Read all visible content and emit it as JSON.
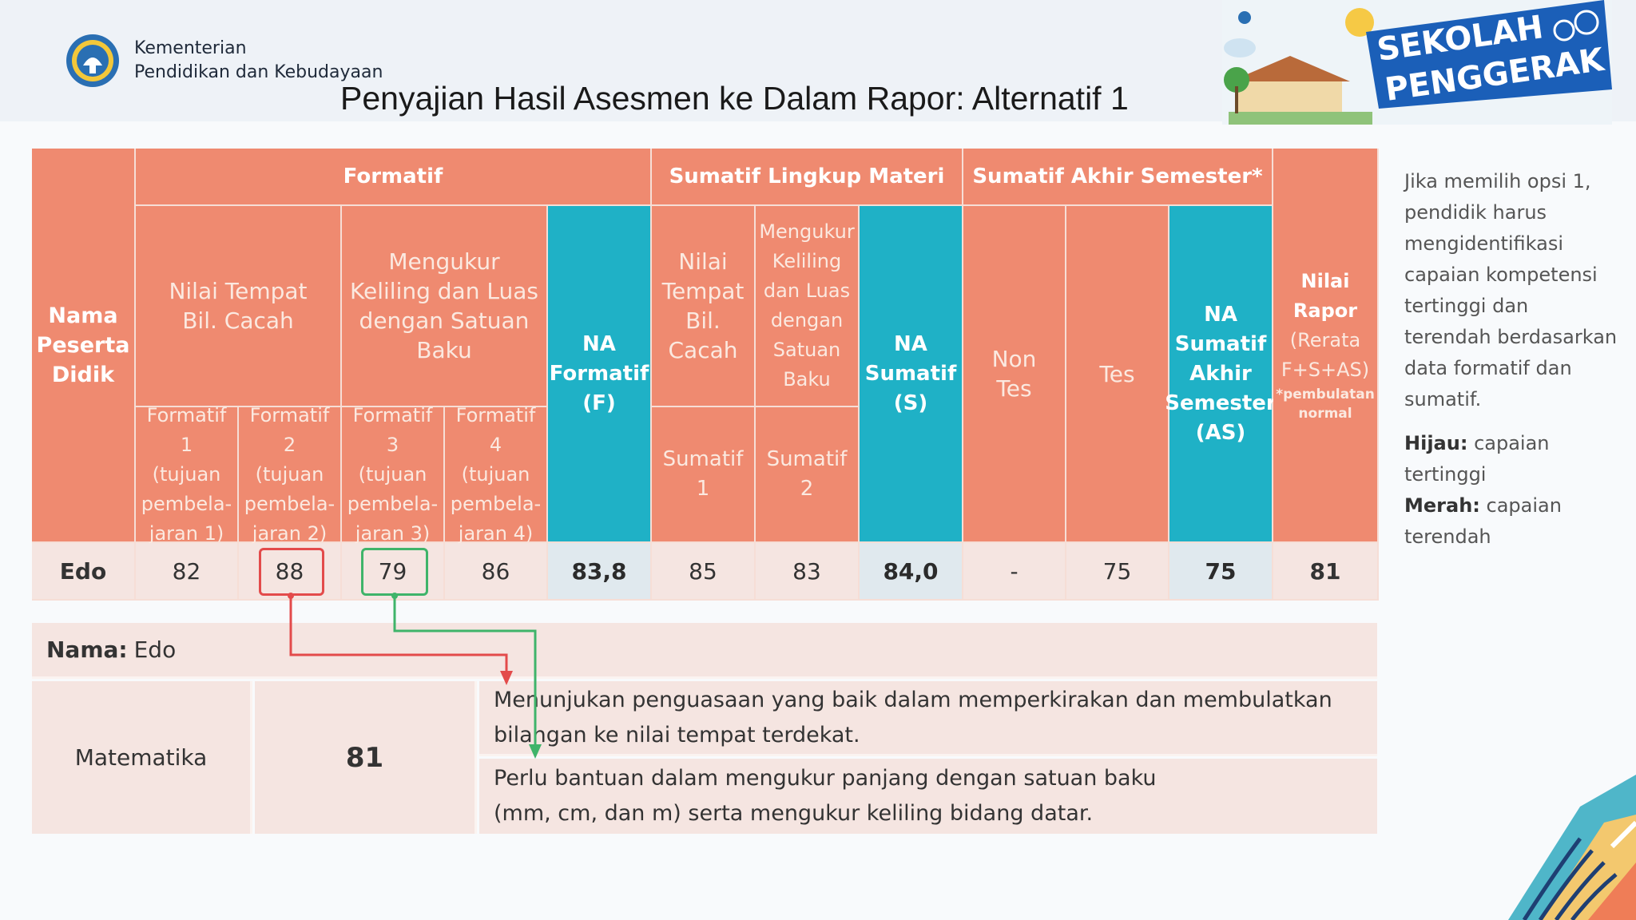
{
  "header": {
    "ministry_line1": "Kementerian",
    "ministry_line2": "Pendidikan dan Kebudayaan",
    "title": "Penyajian Hasil Asesmen ke Dalam Rapor: Alternatif 1",
    "badge_line1": "SEKOLAH",
    "badge_line2": "PENGGERAK"
  },
  "table": {
    "col_nama": [
      "Nama",
      "Peserta",
      "Didik"
    ],
    "group_formatif": "Formatif",
    "group_sumatif_lingkup": "Sumatif Lingkup Materi",
    "group_sumatif_akhir": "Sumatif Akhir Semester*",
    "formatif_topic1": [
      "Nilai Tempat",
      "Bil. Cacah"
    ],
    "formatif_topic2": [
      "Mengukur",
      "Keliling dan Luas",
      "dengan Satuan",
      "Baku"
    ],
    "formatif_cols": [
      [
        "Formatif 1",
        "(tujuan",
        "pembela-",
        "jaran 1)"
      ],
      [
        "Formatif 2",
        "(tujuan",
        "pembela-",
        "jaran 2)"
      ],
      [
        "Formatif 3",
        "(tujuan",
        "pembela-",
        "jaran 3)"
      ],
      [
        "Formatif 4",
        "(tujuan",
        "pembela-",
        "jaran 4)"
      ]
    ],
    "na_formatif": [
      "NA",
      "Formatif",
      "(F)"
    ],
    "sumatif_topic1": [
      "Nilai",
      "Tempat",
      "Bil.",
      "Cacah"
    ],
    "sumatif_topic2": [
      "Mengukur",
      "Keliling",
      "dan Luas",
      "dengan",
      "Satuan",
      "Baku"
    ],
    "sumatif_1": "Sumatif 1",
    "sumatif_2": "Sumatif 2",
    "na_sumatif": [
      "NA",
      "Sumatif",
      "(S)"
    ],
    "non_tes": [
      "Non",
      "Tes"
    ],
    "tes": "Tes",
    "na_sas": [
      "NA",
      "Sumatif",
      "Akhir",
      "Semester",
      "(AS)"
    ],
    "nilai_rapor": [
      "Nilai",
      "Rapor",
      "(Rerata",
      "F+S+AS)"
    ],
    "nilai_rapor_note": [
      "*pembulatan",
      "normal"
    ],
    "row": {
      "name": "Edo",
      "f1": "82",
      "f2": "88",
      "f3": "79",
      "f4": "86",
      "na_f": "83,8",
      "s1": "85",
      "s2": "83",
      "na_s": "84,0",
      "non_tes": "-",
      "tes": "75",
      "na_as": "75",
      "rapor": "81"
    }
  },
  "sidebar": {
    "intro": "Jika memilih opsi 1, pendidik harus mengidentifikasi capaian kompetensi tertinggi dan terendah berdasarkan data formatif dan sumatif.",
    "green_label": "Hijau:",
    "green_text": "capaian tertinggi",
    "red_label": "Merah:",
    "red_text": "capaian terendah"
  },
  "summary": {
    "name_label": "Nama:",
    "name_value": "Edo",
    "subject": "Matematika",
    "score": "81",
    "desc_high": [
      "Menunjukan penguasaan yang baik dalam memperkirakan dan membulatkan",
      "bilangan ke nilai tempat terdekat."
    ],
    "desc_low": [
      "Perlu bantuan dalam mengukur panjang dengan satuan baku",
      "(mm, cm, dan m) serta mengukur keliling bidang datar."
    ]
  },
  "colors": {
    "header_orange": "#ef8a70",
    "header_teal": "#1fb1c6",
    "row_pink": "#f5e5e1",
    "highlight_red": "#e34b4b",
    "highlight_green": "#3fb46a"
  }
}
